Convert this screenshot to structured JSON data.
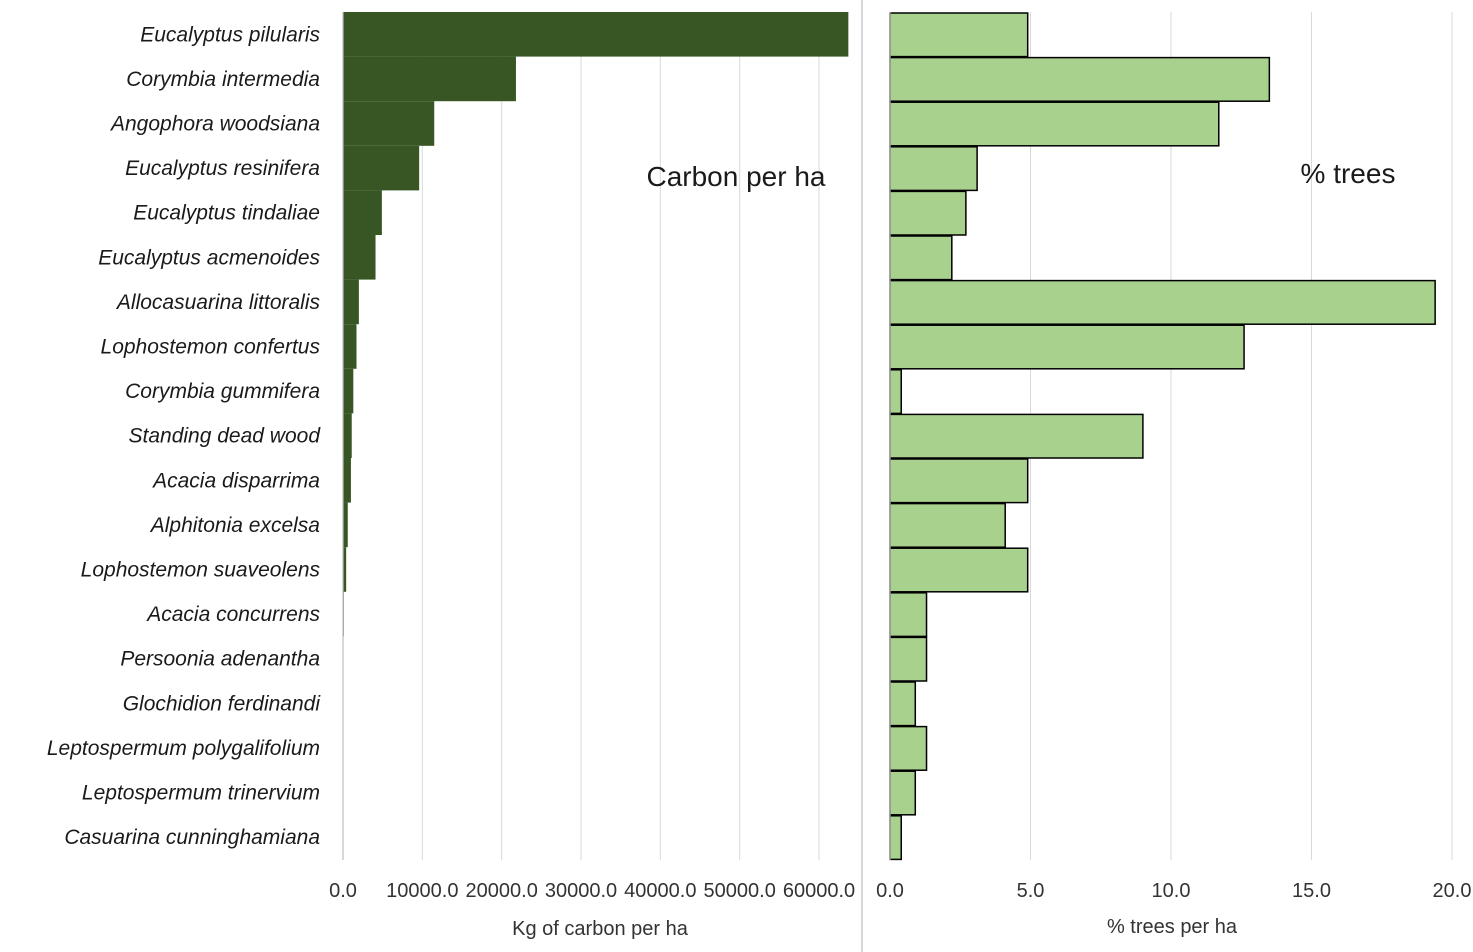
{
  "chart_data": [
    {
      "type": "bar",
      "orientation": "horizontal",
      "title": "Carbon per ha",
      "xlabel": "Kg of carbon per ha",
      "xlim": [
        0,
        65000
      ],
      "xticks": [
        "0.0",
        "10000.0",
        "20000.0",
        "30000.0",
        "40000.0",
        "50000.0",
        "60000.0"
      ],
      "grid": true,
      "bar_color": "#375623",
      "categories": [
        "Eucalyptus pilularis",
        "Corymbia intermedia",
        "Angophora woodsiana",
        "Eucalyptus resinifera",
        "Eucalyptus tindaliae",
        "Eucalyptus acmenoides",
        "Allocasuarina littoralis",
        "Lophostemon confertus",
        "Corymbia gummifera",
        "Standing dead wood",
        "Acacia disparrima",
        "Alphitonia excelsa",
        "Lophostemon suaveolens",
        "Acacia concurrens",
        "Persoonia adenantha",
        "Glochidion ferdinandi",
        "Leptospermum polygalifolium",
        "Leptospermum trinervium",
        "Casuarina cunninghamiana"
      ],
      "values": [
        63700,
        21800,
        11500,
        9600,
        4900,
        4100,
        2000,
        1700,
        1300,
        1100,
        1000,
        600,
        400,
        100,
        50,
        30,
        30,
        20,
        10
      ]
    },
    {
      "type": "bar",
      "orientation": "horizontal",
      "title": "% trees",
      "xlabel": "% trees per ha",
      "xlim": [
        0,
        20
      ],
      "xticks": [
        "0.0",
        "5.0",
        "10.0",
        "15.0",
        "20.0"
      ],
      "grid": true,
      "bar_color": "#a9d18e",
      "bar_stroke": "#000000",
      "categories": [
        "Eucalyptus pilularis",
        "Corymbia intermedia",
        "Angophora woodsiana",
        "Eucalyptus resinifera",
        "Eucalyptus tindaliae",
        "Eucalyptus acmenoides",
        "Allocasuarina littoralis",
        "Lophostemon confertus",
        "Corymbia gummifera",
        "Standing dead wood",
        "Acacia disparrima",
        "Alphitonia excelsa",
        "Lophostemon suaveolens",
        "Acacia concurrens",
        "Persoonia adenantha",
        "Glochidion ferdinandi",
        "Leptospermum polygalifolium",
        "Leptospermum trinervium",
        "Casuarina cunninghamiana"
      ],
      "values": [
        4.9,
        13.5,
        11.7,
        3.1,
        2.7,
        2.2,
        19.4,
        12.6,
        0.4,
        9.0,
        4.9,
        4.1,
        4.9,
        1.3,
        1.3,
        0.9,
        1.3,
        0.9,
        0.4
      ]
    }
  ]
}
